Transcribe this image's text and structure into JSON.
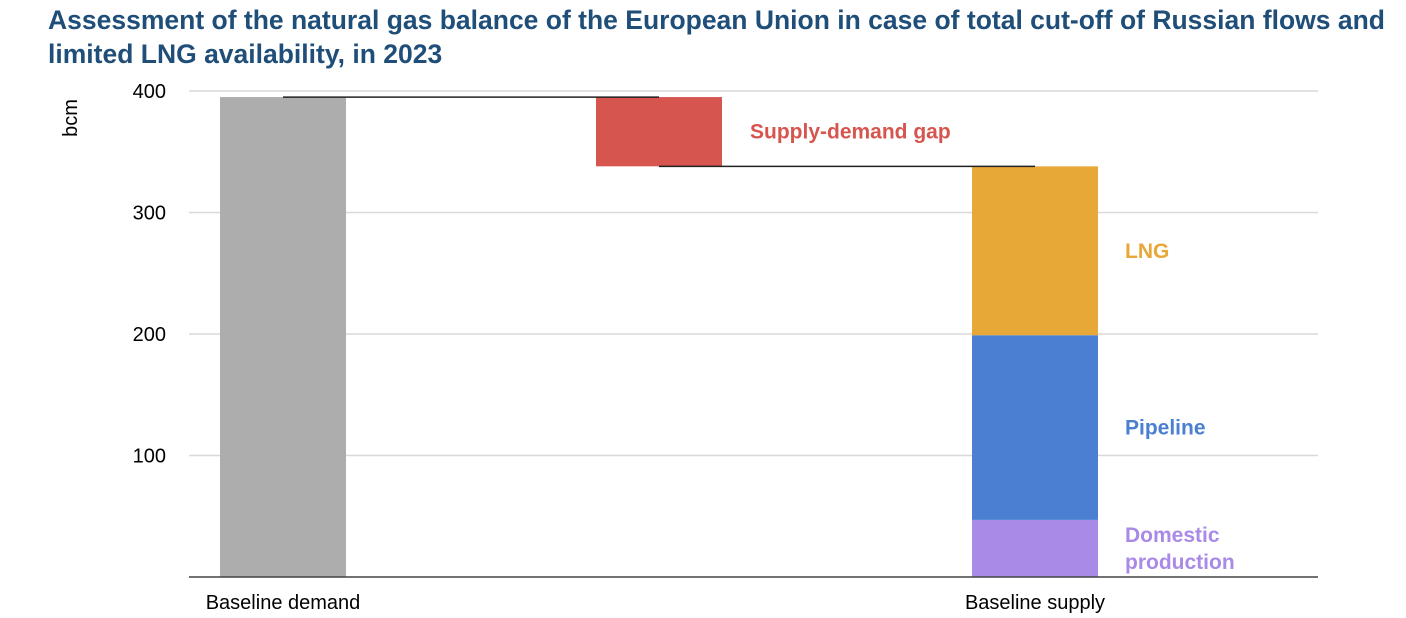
{
  "title": "Assessment of the natural gas balance of the European Union in case of total cut-off of Russian flows and limited LNG availability, in 2023",
  "chart_data": {
    "type": "bar",
    "subtype": "waterfall",
    "ylabel": "bcm",
    "ylim": [
      0,
      400
    ],
    "yticks": [
      100,
      200,
      300,
      400
    ],
    "grid": true,
    "categories": [
      "Baseline demand",
      "Baseline supply"
    ],
    "demand": {
      "category": "Baseline demand",
      "value": 395,
      "color": "#adadad"
    },
    "gap": {
      "label": "Supply-demand gap",
      "from": 338,
      "to": 395,
      "value": 57,
      "color": "#d6554e"
    },
    "supply_stack": {
      "category": "Baseline supply",
      "segments": [
        {
          "label": "Domestic production",
          "lines": [
            "Domestic",
            "production"
          ],
          "value": 47,
          "color": "#a98ae6"
        },
        {
          "label": "Pipeline",
          "lines": [
            "Pipeline"
          ],
          "value": 152,
          "color": "#4a7fd2"
        },
        {
          "label": "LNG",
          "lines": [
            "LNG"
          ],
          "value": 139,
          "color": "#e8a838"
        }
      ]
    },
    "connectors": [
      {
        "from_category": "Baseline demand",
        "to": "gap",
        "value": 395
      },
      {
        "from": "gap",
        "to_category": "Baseline supply",
        "value": 338
      }
    ]
  }
}
